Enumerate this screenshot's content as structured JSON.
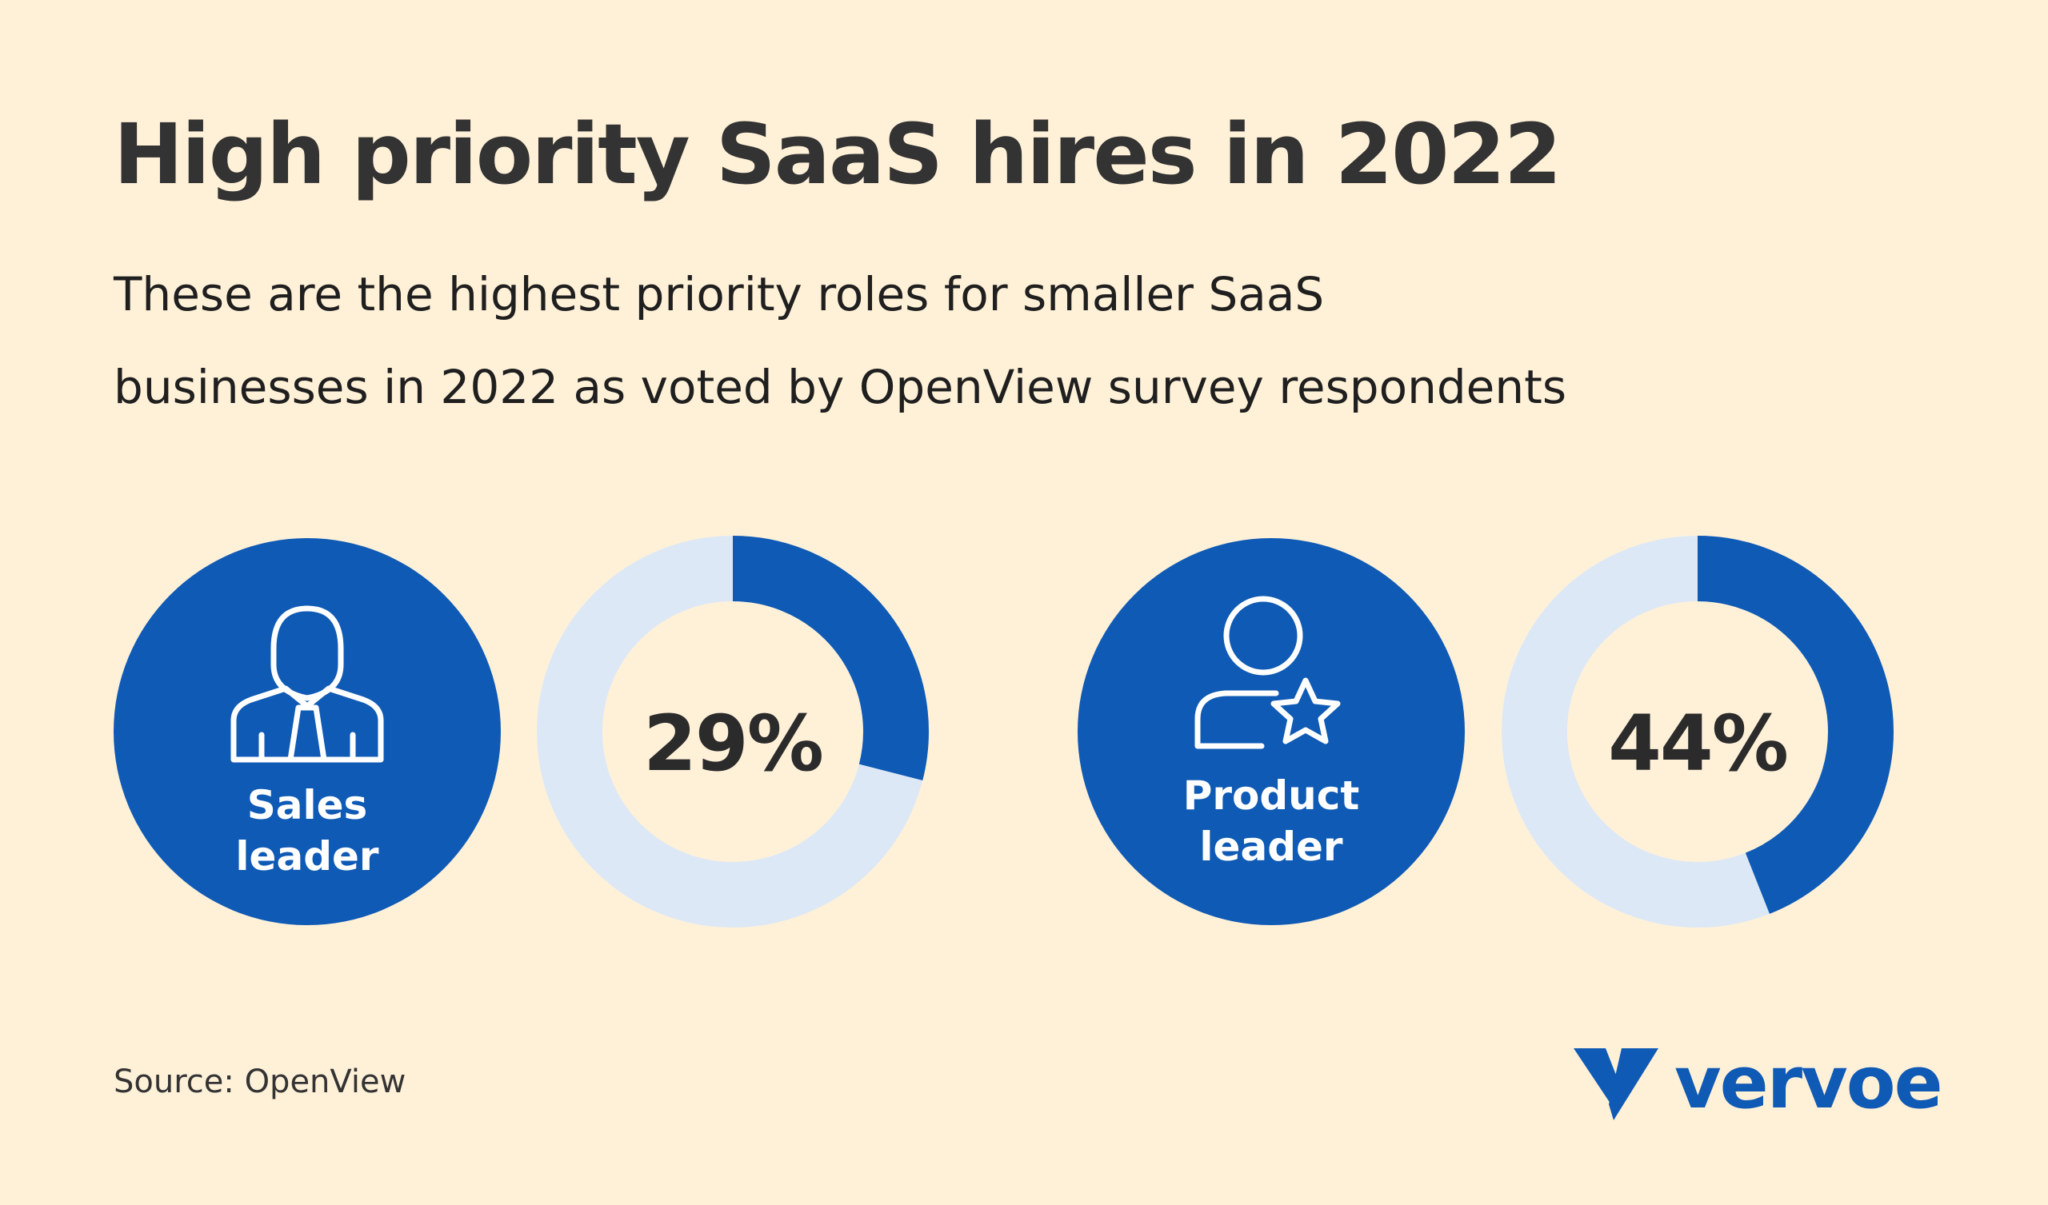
{
  "title": "High priority SaaS hires in 2022",
  "subtitle": {
    "line1": "These are the highest priority roles for smaller SaaS",
    "line2": "businesses in 2022 as voted by OpenView survey respondents"
  },
  "source": "Source: OpenView",
  "logo": {
    "text": "vervoe"
  },
  "colors": {
    "background": "#fff1d8",
    "primary": "#0f5ab5",
    "track": "#dde8f6",
    "text": "#333333"
  },
  "chart_data": [
    {
      "type": "pie",
      "title": "",
      "category_label": [
        "Sales",
        "leader"
      ],
      "icon": "person-tie-icon",
      "value": 29,
      "value_label": "29%",
      "max": 100
    },
    {
      "type": "pie",
      "title": "",
      "category_label": [
        "Product",
        "leader"
      ],
      "icon": "person-star-icon",
      "value": 44,
      "value_label": "44%",
      "max": 100
    }
  ]
}
